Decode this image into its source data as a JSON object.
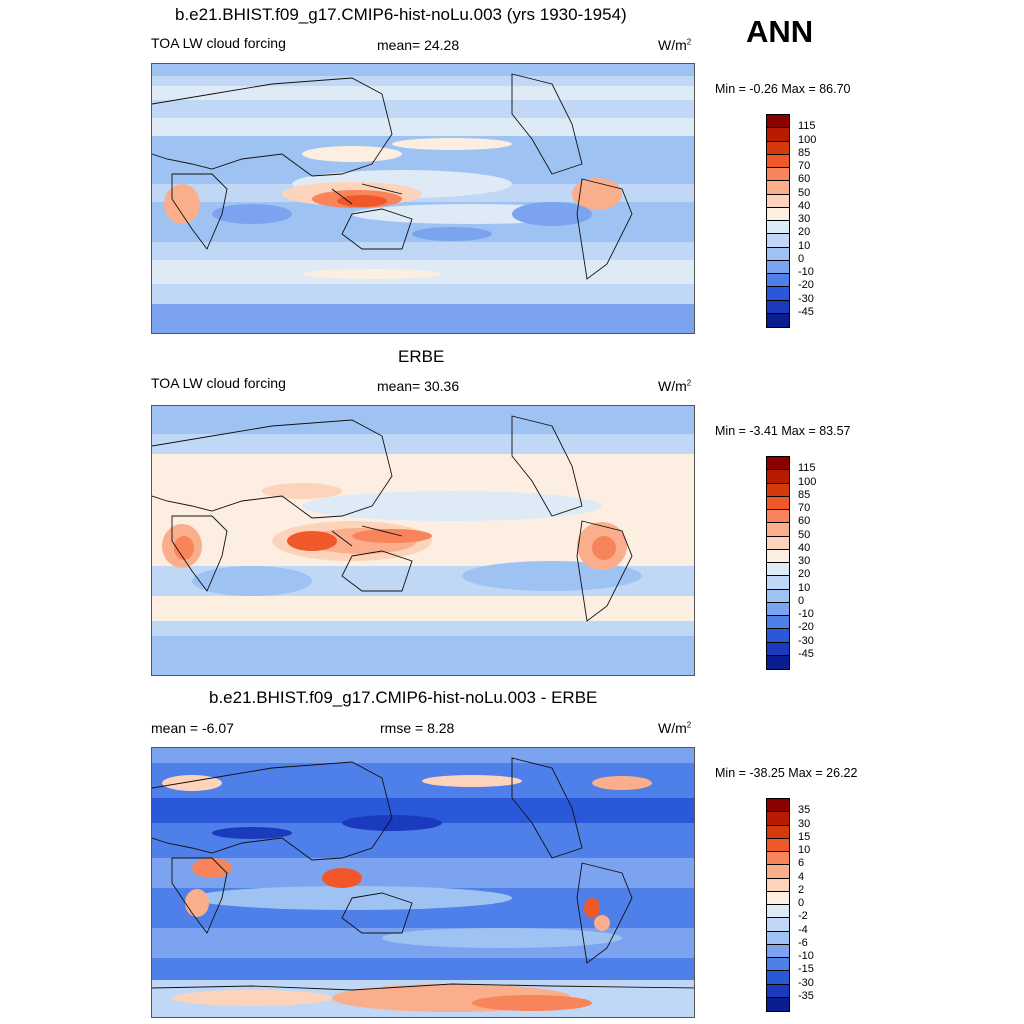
{
  "header": {
    "case_title": "b.e21.BHIST.f09_g17.CMIP6-hist-noLu.003 (yrs 1930-1954)",
    "season": "ANN"
  },
  "panels": [
    {
      "title": "",
      "left_label": "TOA LW cloud forcing",
      "stat_label": "mean=  24.28",
      "units": "W/m",
      "units_sup": "2",
      "minmax": "Min =  -0.26 Max =  86.70"
    },
    {
      "title": "ERBE",
      "left_label": "TOA LW cloud forcing",
      "stat_label": "mean=  30.36",
      "units": "W/m",
      "units_sup": "2",
      "minmax": "Min =  -3.41 Max =  83.57"
    },
    {
      "title": "b.e21.BHIST.f09_g17.CMIP6-hist-noLu.003 - ERBE",
      "left_label": "mean =  -6.07",
      "stat_label": "rmse =   8.28",
      "units": "W/m",
      "units_sup": "2",
      "minmax": "Min = -38.25 Max =  26.22"
    }
  ],
  "colorbars": {
    "field": {
      "labels": [
        "115",
        "100",
        "85",
        "70",
        "60",
        "50",
        "40",
        "30",
        "20",
        "10",
        "0",
        "-10",
        "-20",
        "-30",
        "-45"
      ],
      "colors": [
        "#8b0000",
        "#b71c00",
        "#d63a0c",
        "#f0582a",
        "#f7845a",
        "#fbae8c",
        "#fdd3bb",
        "#fdeee2",
        "#deebf7",
        "#c0d8f5",
        "#9ec3f3",
        "#7ba3ef",
        "#4f7fe8",
        "#2a58d8",
        "#1a3bbd",
        "#0a1e8f"
      ]
    },
    "diff": {
      "labels": [
        "35",
        "30",
        "15",
        "10",
        "6",
        "4",
        "2",
        "0",
        "-2",
        "-4",
        "-6",
        "-10",
        "-15",
        "-30",
        "-35"
      ],
      "colors": [
        "#8b0000",
        "#b71c00",
        "#d63a0c",
        "#f0582a",
        "#f7845a",
        "#fbae8c",
        "#fdd3bb",
        "#fdeee2",
        "#deebf7",
        "#c0d8f5",
        "#9ec3f3",
        "#7ba3ef",
        "#4f7fe8",
        "#2a58d8",
        "#1a3bbd",
        "#0a1e8f"
      ]
    }
  }
}
